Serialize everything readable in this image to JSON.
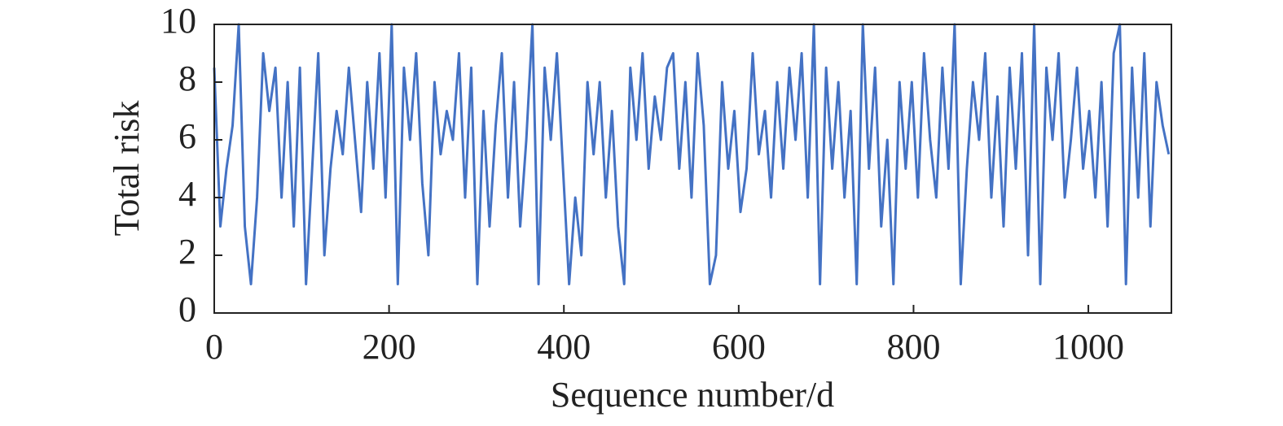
{
  "chart_data": {
    "type": "line",
    "xlabel": "Sequence number/d",
    "ylabel": "Total risk",
    "color": "#4472c4",
    "x": [
      0,
      7,
      14,
      21,
      28,
      35,
      42,
      49,
      56,
      63,
      70,
      77,
      84,
      91,
      98,
      105,
      112,
      119,
      126,
      133,
      140,
      147,
      154,
      161,
      168,
      175,
      182,
      189,
      196,
      203,
      210,
      217,
      224,
      231,
      238,
      245,
      252,
      259,
      266,
      273,
      280,
      287,
      294,
      301,
      308,
      315,
      322,
      329,
      336,
      343,
      350,
      357,
      364,
      371,
      378,
      385,
      392,
      399,
      406,
      413,
      420,
      427,
      434,
      441,
      448,
      455,
      462,
      469,
      476,
      483,
      490,
      497,
      504,
      511,
      518,
      525,
      532,
      539,
      546,
      553,
      560,
      567,
      574,
      581,
      588,
      595,
      602,
      609,
      616,
      623,
      630,
      637,
      644,
      651,
      658,
      665,
      672,
      679,
      686,
      693,
      700,
      707,
      714,
      721,
      728,
      735,
      742,
      749,
      756,
      763,
      770,
      777,
      784,
      791,
      798,
      805,
      812,
      819,
      826,
      833,
      840,
      847,
      854,
      861,
      868,
      875,
      882,
      889,
      896,
      903,
      910,
      917,
      924,
      931,
      938,
      945,
      952,
      959,
      966,
      973,
      980,
      987,
      994,
      1001,
      1008,
      1015,
      1022,
      1029,
      1036,
      1043,
      1050,
      1057,
      1064,
      1071,
      1078,
      1085,
      1092
    ],
    "values": [
      8.5,
      3,
      5,
      6.5,
      10,
      3,
      1,
      4,
      9,
      7,
      8.5,
      4,
      8,
      3,
      8.5,
      1,
      5,
      9,
      2,
      5,
      7,
      5.5,
      8.5,
      6,
      3.5,
      8,
      5,
      9,
      4,
      10,
      1,
      8.5,
      6,
      9,
      4.5,
      2,
      8,
      5.5,
      7,
      6,
      9,
      4,
      8.5,
      1,
      7,
      3,
      6.5,
      9,
      4,
      8,
      3,
      6,
      10,
      1,
      8.5,
      6,
      9,
      5,
      1,
      4,
      2,
      8,
      5.5,
      8,
      4,
      7,
      3,
      1,
      8.5,
      6,
      9,
      5,
      7.5,
      6,
      8.5,
      9,
      5,
      8,
      4,
      9,
      6.5,
      1,
      2,
      8,
      5,
      7,
      3.5,
      5,
      9,
      5.5,
      7,
      4,
      8,
      5,
      8.5,
      6,
      9,
      4,
      10,
      1,
      8.5,
      5,
      8,
      4,
      7,
      1,
      10,
      5,
      8.5,
      3,
      6,
      1,
      8,
      5,
      8,
      4,
      9,
      6,
      4,
      8.5,
      5,
      10,
      1,
      5,
      8,
      6,
      9,
      4,
      7.5,
      3,
      8.5,
      5,
      9,
      2,
      10,
      1,
      8.5,
      6,
      9,
      4,
      6,
      8.5,
      5,
      7,
      4,
      8,
      3,
      9,
      10,
      1,
      8.5,
      4,
      9,
      3,
      8,
      6.5,
      5.5
    ],
    "xlim": [
      0,
      1095
    ],
    "ylim": [
      0,
      10
    ],
    "xticks": [
      0,
      200,
      400,
      600,
      800,
      1000
    ],
    "yticks": [
      0,
      2,
      4,
      6,
      8,
      10
    ]
  }
}
